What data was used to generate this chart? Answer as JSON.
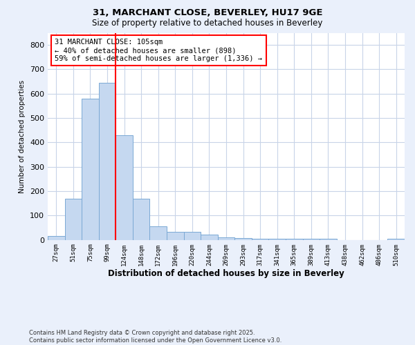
{
  "title1": "31, MARCHANT CLOSE, BEVERLEY, HU17 9GE",
  "title2": "Size of property relative to detached houses in Beverley",
  "xlabel": "Distribution of detached houses by size in Beverley",
  "ylabel": "Number of detached properties",
  "categories": [
    "27sqm",
    "51sqm",
    "75sqm",
    "99sqm",
    "124sqm",
    "148sqm",
    "172sqm",
    "196sqm",
    "220sqm",
    "244sqm",
    "269sqm",
    "293sqm",
    "317sqm",
    "341sqm",
    "365sqm",
    "389sqm",
    "413sqm",
    "438sqm",
    "462sqm",
    "486sqm",
    "510sqm"
  ],
  "values": [
    15,
    168,
    580,
    645,
    428,
    170,
    55,
    33,
    33,
    22,
    10,
    8,
    5,
    5,
    4,
    4,
    3,
    0,
    0,
    0,
    4
  ],
  "bar_color": "#c5d8f0",
  "bar_edge_color": "#7aa8d4",
  "vline_x": 3.5,
  "vline_color": "red",
  "annotation_text": "31 MARCHANT CLOSE: 105sqm\n← 40% of detached houses are smaller (898)\n59% of semi-detached houses are larger (1,336) →",
  "annotation_box_color": "white",
  "annotation_box_edge_color": "red",
  "ylim": [
    0,
    850
  ],
  "yticks": [
    0,
    100,
    200,
    300,
    400,
    500,
    600,
    700,
    800
  ],
  "footnote": "Contains HM Land Registry data © Crown copyright and database right 2025.\nContains public sector information licensed under the Open Government Licence v3.0.",
  "bg_color": "#eaf0fb",
  "plot_bg_color": "white",
  "grid_color": "#c8d4e8"
}
